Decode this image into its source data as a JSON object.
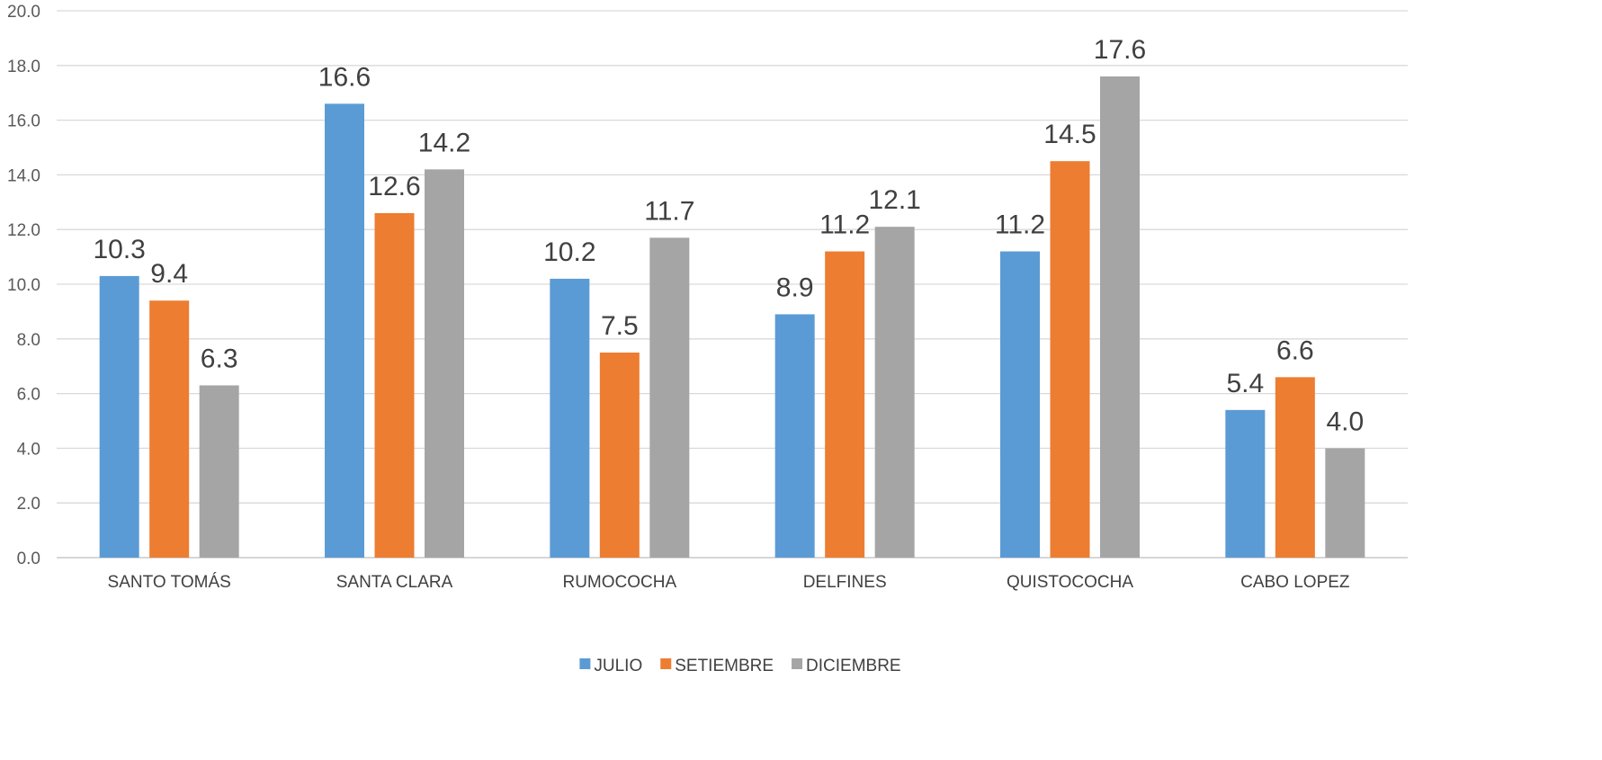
{
  "chart_data": {
    "type": "bar",
    "categories": [
      "SANTO TOMÁS",
      "SANTA CLARA",
      "RUMOCOCHA",
      "DELFINES",
      "QUISTOCOCHA",
      "CABO LOPEZ"
    ],
    "series": [
      {
        "name": "JULIO",
        "color": "#5B9BD5",
        "values": [
          10.3,
          16.6,
          10.2,
          8.9,
          11.2,
          5.4
        ]
      },
      {
        "name": "SETIEMBRE",
        "color": "#ED7D31",
        "values": [
          9.4,
          12.6,
          7.5,
          11.2,
          14.5,
          6.6
        ]
      },
      {
        "name": "DICIEMBRE",
        "color": "#A5A5A5",
        "values": [
          6.3,
          14.2,
          11.7,
          12.1,
          17.6,
          4.0
        ]
      }
    ],
    "ylim": [
      0,
      20
    ],
    "yticks": [
      "0.0",
      "2.0",
      "4.0",
      "6.0",
      "8.0",
      "10.0",
      "12.0",
      "14.0",
      "16.0",
      "18.0",
      "20.0"
    ],
    "title": "",
    "xlabel": "",
    "ylabel": "",
    "grid": true,
    "legend_position": "bottom",
    "data_labels": true
  }
}
